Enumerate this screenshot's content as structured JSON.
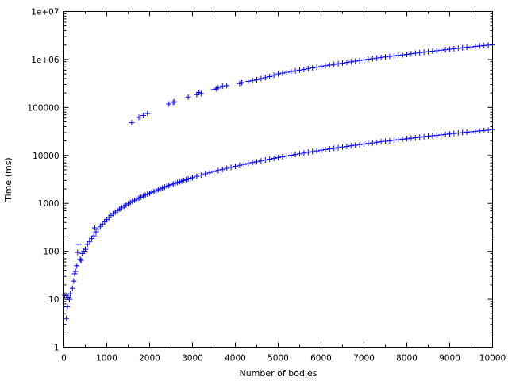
{
  "chart_data": {
    "type": "scatter",
    "title": "",
    "xlabel": "Number of bodies",
    "ylabel": "Time (ms)",
    "x_scale": "linear",
    "y_scale": "log",
    "xlim": [
      0,
      10000
    ],
    "ylim": [
      1,
      10000000
    ],
    "grid": false,
    "legend": "none",
    "marker": "+",
    "marker_color": "#0000ff",
    "x_ticks": [
      {
        "value": 0,
        "label": "0"
      },
      {
        "value": 1000,
        "label": "1000"
      },
      {
        "value": 2000,
        "label": "2000"
      },
      {
        "value": 3000,
        "label": "3000"
      },
      {
        "value": 4000,
        "label": "4000"
      },
      {
        "value": 5000,
        "label": "5000"
      },
      {
        "value": 6000,
        "label": "6000"
      },
      {
        "value": 7000,
        "label": "7000"
      },
      {
        "value": 8000,
        "label": "8000"
      },
      {
        "value": 9000,
        "label": "9000"
      },
      {
        "value": 10000,
        "label": "10000"
      }
    ],
    "y_ticks": [
      {
        "value": 1,
        "label": "1"
      },
      {
        "value": 10,
        "label": "10"
      },
      {
        "value": 100,
        "label": "100"
      },
      {
        "value": 1000,
        "label": "1000"
      },
      {
        "value": 10000,
        "label": "10000"
      },
      {
        "value": 100000,
        "label": "100000"
      },
      {
        "value": 1000000,
        "label": "1e+06"
      },
      {
        "value": 10000000,
        "label": "1e+07"
      }
    ],
    "series": [
      {
        "color": "#0000ff",
        "points": [
          [
            20,
            12
          ],
          [
            50,
            12
          ],
          [
            60,
            4
          ],
          [
            80,
            7
          ],
          [
            100,
            11
          ],
          [
            130,
            10
          ],
          [
            150,
            13
          ],
          [
            200,
            17
          ],
          [
            230,
            24
          ],
          [
            250,
            34
          ],
          [
            270,
            38
          ],
          [
            300,
            50
          ],
          [
            320,
            95
          ],
          [
            350,
            140
          ],
          [
            380,
            68
          ],
          [
            400,
            65
          ],
          [
            430,
            90
          ],
          [
            470,
            100
          ],
          [
            500,
            110
          ],
          [
            550,
            140
          ],
          [
            600,
            160
          ],
          [
            650,
            185
          ],
          [
            700,
            210
          ],
          [
            720,
            310
          ],
          [
            750,
            255
          ],
          [
            800,
            290
          ],
          [
            850,
            330
          ],
          [
            900,
            370
          ],
          [
            950,
            410
          ],
          [
            1000,
            460
          ],
          [
            1050,
            510
          ],
          [
            1100,
            560
          ],
          [
            1150,
            610
          ],
          [
            1200,
            660
          ],
          [
            1250,
            710
          ],
          [
            1300,
            760
          ],
          [
            1350,
            810
          ],
          [
            1400,
            870
          ],
          [
            1450,
            920
          ],
          [
            1500,
            980
          ],
          [
            1550,
            1040
          ],
          [
            1600,
            1100
          ],
          [
            1650,
            1160
          ],
          [
            1700,
            1220
          ],
          [
            1750,
            1290
          ],
          [
            1800,
            1350
          ],
          [
            1850,
            1420
          ],
          [
            1900,
            1490
          ],
          [
            1950,
            1560
          ],
          [
            2000,
            1630
          ],
          [
            2050,
            1700
          ],
          [
            2100,
            1770
          ],
          [
            2150,
            1850
          ],
          [
            2200,
            1930
          ],
          [
            2250,
            2010
          ],
          [
            2300,
            2090
          ],
          [
            2350,
            2180
          ],
          [
            2400,
            2270
          ],
          [
            2450,
            2360
          ],
          [
            2500,
            2450
          ],
          [
            2550,
            2540
          ],
          [
            2600,
            2630
          ],
          [
            2650,
            2730
          ],
          [
            2700,
            2820
          ],
          [
            2750,
            2920
          ],
          [
            2800,
            3020
          ],
          [
            2850,
            3120
          ],
          [
            2900,
            3230
          ],
          [
            2950,
            3330
          ],
          [
            3000,
            3440
          ],
          [
            3100,
            3660
          ],
          [
            3200,
            3890
          ],
          [
            3300,
            4120
          ],
          [
            3400,
            4360
          ],
          [
            3500,
            4600
          ],
          [
            3600,
            4860
          ],
          [
            3700,
            5110
          ],
          [
            3800,
            5380
          ],
          [
            3900,
            5650
          ],
          [
            4000,
            5920
          ],
          [
            4100,
            6210
          ],
          [
            4200,
            6500
          ],
          [
            4300,
            6790
          ],
          [
            4400,
            7090
          ],
          [
            4500,
            7400
          ],
          [
            4600,
            7710
          ],
          [
            4700,
            8030
          ],
          [
            4800,
            8360
          ],
          [
            4900,
            8690
          ],
          [
            5000,
            9030
          ],
          [
            5100,
            9380
          ],
          [
            5200,
            9730
          ],
          [
            5300,
            10090
          ],
          [
            5400,
            10460
          ],
          [
            5500,
            10830
          ],
          [
            5600,
            11210
          ],
          [
            5700,
            11600
          ],
          [
            5800,
            11990
          ],
          [
            5900,
            12390
          ],
          [
            6000,
            12800
          ],
          [
            6100,
            13210
          ],
          [
            6200,
            13630
          ],
          [
            6300,
            14060
          ],
          [
            6400,
            14490
          ],
          [
            6500,
            14930
          ],
          [
            6600,
            15380
          ],
          [
            6700,
            15830
          ],
          [
            6800,
            16290
          ],
          [
            6900,
            16760
          ],
          [
            7000,
            17240
          ],
          [
            7100,
            17720
          ],
          [
            7200,
            18200
          ],
          [
            7300,
            18700
          ],
          [
            7400,
            19200
          ],
          [
            7500,
            19700
          ],
          [
            7600,
            20210
          ],
          [
            7700,
            20730
          ],
          [
            7800,
            21260
          ],
          [
            7900,
            21790
          ],
          [
            8000,
            22320
          ],
          [
            8100,
            22870
          ],
          [
            8200,
            23420
          ],
          [
            8300,
            23980
          ],
          [
            8400,
            24540
          ],
          [
            8500,
            25110
          ],
          [
            8600,
            25690
          ],
          [
            8700,
            26270
          ],
          [
            8800,
            26860
          ],
          [
            8900,
            27460
          ],
          [
            9000,
            28060
          ],
          [
            9100,
            28670
          ],
          [
            9200,
            29290
          ],
          [
            9300,
            29910
          ],
          [
            9400,
            30540
          ],
          [
            9500,
            31180
          ],
          [
            9600,
            31820
          ],
          [
            9700,
            32470
          ],
          [
            9800,
            33130
          ],
          [
            9900,
            33800
          ],
          [
            10000,
            34470
          ]
        ]
      },
      {
        "color": "#0000ff",
        "points": [
          [
            1580,
            48000
          ],
          [
            1750,
            62000
          ],
          [
            1850,
            68000
          ],
          [
            1950,
            75000
          ],
          [
            2450,
            118000
          ],
          [
            2550,
            128000
          ],
          [
            2580,
            131000
          ],
          [
            2900,
            165000
          ],
          [
            3100,
            185000
          ],
          [
            3150,
            205000
          ],
          [
            3200,
            195000
          ],
          [
            3500,
            235000
          ],
          [
            3550,
            245000
          ],
          [
            3600,
            255000
          ],
          [
            3700,
            275000
          ],
          [
            3800,
            285000
          ],
          [
            4100,
            315000
          ],
          [
            4150,
            330000
          ],
          [
            4300,
            350000
          ],
          [
            4400,
            365000
          ],
          [
            4500,
            380000
          ],
          [
            4600,
            400000
          ],
          [
            4700,
            420000
          ],
          [
            4800,
            440000
          ],
          [
            4900,
            470000
          ],
          [
            5000,
            500000
          ],
          [
            5100,
            520000
          ],
          [
            5200,
            540000
          ],
          [
            5300,
            560000
          ],
          [
            5400,
            580000
          ],
          [
            5500,
            600000
          ],
          [
            5600,
            620000
          ],
          [
            5700,
            645000
          ],
          [
            5800,
            670000
          ],
          [
            5900,
            690000
          ],
          [
            6000,
            715000
          ],
          [
            6100,
            740000
          ],
          [
            6200,
            765000
          ],
          [
            6300,
            790000
          ],
          [
            6400,
            815000
          ],
          [
            6500,
            840000
          ],
          [
            6600,
            870000
          ],
          [
            6700,
            895000
          ],
          [
            6800,
            925000
          ],
          [
            6900,
            950000
          ],
          [
            7000,
            980000
          ],
          [
            7100,
            1010000
          ],
          [
            7200,
            1040000
          ],
          [
            7300,
            1070000
          ],
          [
            7400,
            1100000
          ],
          [
            7500,
            1130000
          ],
          [
            7600,
            1160000
          ],
          [
            7700,
            1190000
          ],
          [
            7800,
            1220000
          ],
          [
            7900,
            1250000
          ],
          [
            8000,
            1280000
          ],
          [
            8100,
            1315000
          ],
          [
            8200,
            1350000
          ],
          [
            8300,
            1385000
          ],
          [
            8400,
            1420000
          ],
          [
            8500,
            1455000
          ],
          [
            8600,
            1490000
          ],
          [
            8700,
            1525000
          ],
          [
            8800,
            1560000
          ],
          [
            8900,
            1600000
          ],
          [
            9000,
            1635000
          ],
          [
            9100,
            1670000
          ],
          [
            9200,
            1710000
          ],
          [
            9300,
            1750000
          ],
          [
            9400,
            1790000
          ],
          [
            9500,
            1830000
          ],
          [
            9600,
            1870000
          ],
          [
            9700,
            1910000
          ],
          [
            9800,
            1950000
          ],
          [
            9900,
            1990000
          ],
          [
            10000,
            2030000
          ]
        ]
      }
    ]
  }
}
